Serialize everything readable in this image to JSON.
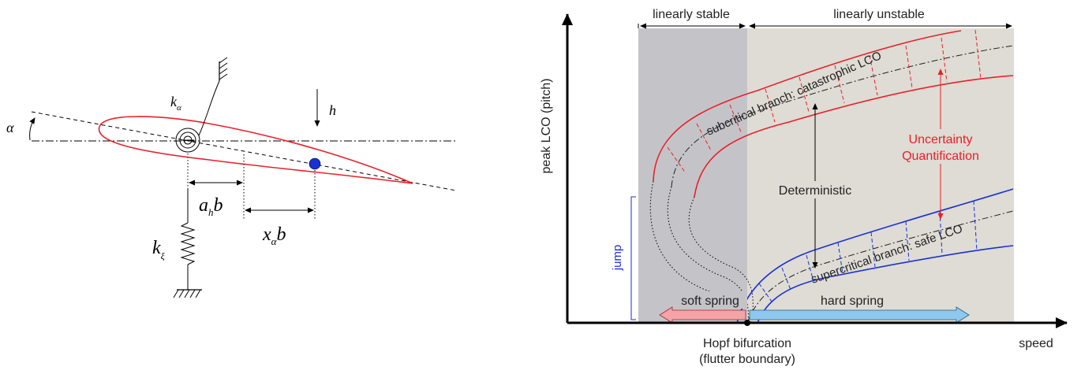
{
  "airfoil_diagram": {
    "symbols": {
      "alpha": "α",
      "k_alpha": "k",
      "k_alpha_sub": "α",
      "h": "h",
      "a_h_b_a": "a",
      "a_h_b_sub": "h",
      "a_h_b_b": "b",
      "x_alpha_b_x": "x",
      "x_alpha_b_sub": "α",
      "x_alpha_b_b": "b",
      "k_xi": "k",
      "k_xi_sub": "ξ"
    },
    "colors": {
      "airfoil": "#e8202a",
      "mass": "#1a2fd6"
    }
  },
  "bifurcation_diagram": {
    "top_labels": {
      "stable": "linearly stable",
      "unstable": "linearly unstable"
    },
    "y_axis_label": "peak LCO (pitch)",
    "x_axis_label": "speed",
    "hopf_label_line1": "Hopf bifurcation",
    "hopf_label_line2": "(flutter boundary)",
    "branches": {
      "subcritical": "subcritical branch: catastrophic LCO",
      "supercritical": "supercritical branch: safe LCO"
    },
    "deterministic": "Deterministic",
    "uq_line1": "Uncertainty",
    "uq_line2": "Quantification",
    "jump": "jump",
    "soft_spring": "soft spring",
    "hard_spring": "hard spring",
    "colors": {
      "subcritical": "#e8202a",
      "supercritical": "#1a2fd6",
      "stable_region": "#c4c4c8",
      "unstable_region": "#dedcd4",
      "uq": "#e8202a",
      "soft_arrow": "#f4a3a6",
      "hard_arrow": "#8ec8ef"
    }
  }
}
